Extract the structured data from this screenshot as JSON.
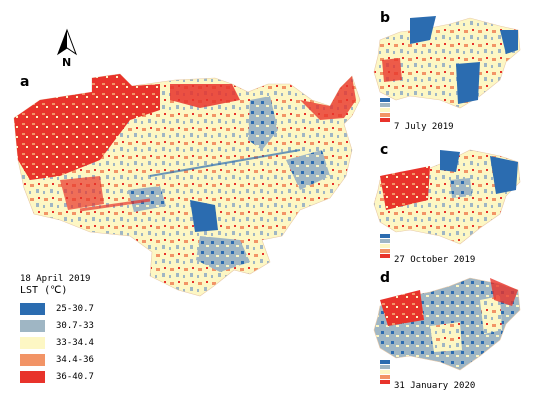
{
  "panels": {
    "a": {
      "letter": "a"
    },
    "b": {
      "letter": "b",
      "date": "7 July 2019"
    },
    "c": {
      "letter": "c",
      "date": "27 October 2019"
    },
    "d": {
      "letter": "d",
      "date": "31 January 2020"
    }
  },
  "north_arrow": {
    "label": "N"
  },
  "legend": {
    "date": "18 April 2019",
    "title": "LST (℃)",
    "items": [
      {
        "label": "25-30.7",
        "color": "#2b6cb0"
      },
      {
        "label": "30.7-33",
        "color": "#9fb6c4"
      },
      {
        "label": "33-34.4",
        "color": "#fdf7c4"
      },
      {
        "label": "34.4-36",
        "color": "#f29466"
      },
      {
        "label": "36-40.7",
        "color": "#e8332b"
      }
    ]
  },
  "colors": {
    "cool": "#2b6cb0",
    "cool_mid": "#9fb6c4",
    "neutral": "#fdf7c4",
    "warm": "#f29466",
    "hot": "#e8332b"
  }
}
